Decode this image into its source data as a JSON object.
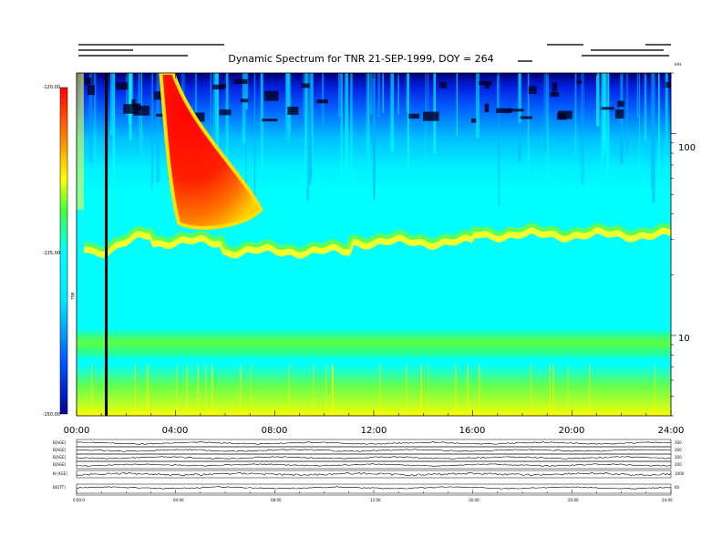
{
  "header": {
    "title": "Dynamic Spectrum for TNR 21-SEP-1999, DOY = 264"
  },
  "chart_data": {
    "type": "heatmap",
    "title": "Dynamic Spectrum for TNR 21-SEP-1999, DOY = 264",
    "x_ticks": [
      "00:00",
      "04:00",
      "08:00",
      "12:00",
      "16:00",
      "20:00",
      "24:00"
    ],
    "x_range_hours": [
      0,
      24
    ],
    "y_scale": "log",
    "y_units": "kHz",
    "y_ticks": [
      100,
      10
    ],
    "y_range": [
      4,
      200
    ],
    "colorbar": {
      "label": "TNR",
      "ticks": [
        "-120.00",
        "-135.00",
        "-150.00"
      ],
      "range": [
        -150,
        -120
      ],
      "colors": [
        "#00009a",
        "#0050ff",
        "#00e8ff",
        "#00ffff",
        "#40ff40",
        "#ffff00",
        "#ff8000",
        "#ff0000"
      ]
    },
    "marker_line_hour": 1.2,
    "features": {
      "background_emission_top_kHz": 35,
      "bright_burst_start_hours": [
        3.4,
        3.9
      ],
      "bright_burst_peak_hour": 4.5
    },
    "panels": [
      {
        "label": "B[AGE]",
        "right": "200"
      },
      {
        "label": "B[AGE]",
        "right": "200"
      },
      {
        "label": "B[AGE]",
        "right": "200"
      },
      {
        "label": "B[AGE]",
        "right": "200"
      },
      {
        "label": "N [AGE]",
        "right": "1000"
      },
      {
        "label": "B[GTT]",
        "right": "60"
      }
    ],
    "panel_x_ticks": [
      "0:00:0",
      "04:00",
      "08:00",
      "12:00",
      "16:00",
      "20:00",
      "24:00"
    ]
  }
}
